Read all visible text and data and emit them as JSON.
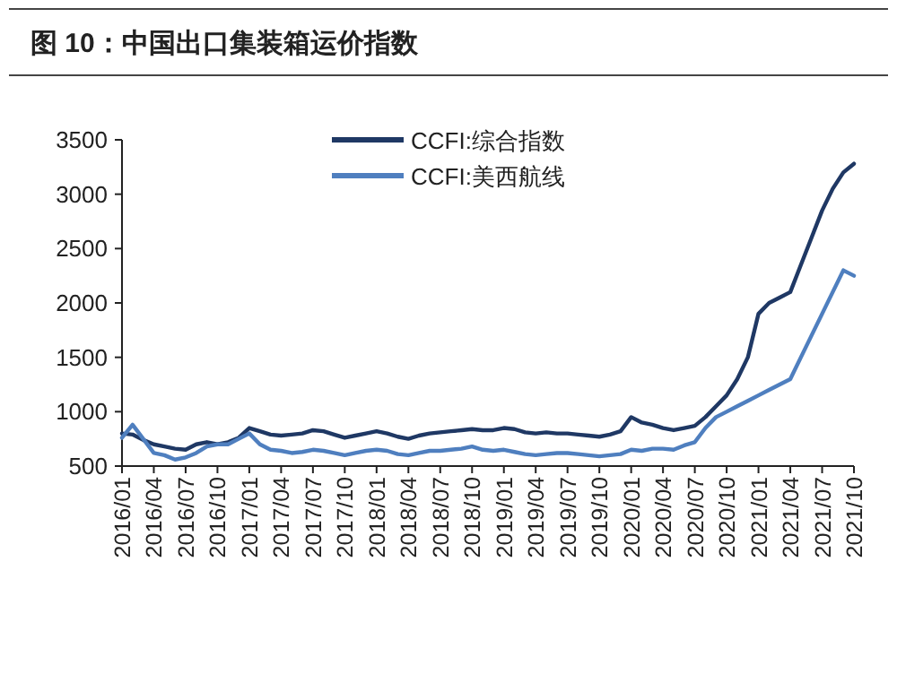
{
  "chart_data": {
    "type": "line",
    "title": "图 10：中国出口集装箱运价指数",
    "x": [
      "2016-01",
      "2016-02",
      "2016-03",
      "2016-04",
      "2016-05",
      "2016-06",
      "2016-07",
      "2016-08",
      "2016-09",
      "2016-10",
      "2016-11",
      "2016-12",
      "2017-01",
      "2017-02",
      "2017-03",
      "2017-04",
      "2017-05",
      "2017-06",
      "2017-07",
      "2017-08",
      "2017-09",
      "2017-10",
      "2017-11",
      "2017-12",
      "2018-01",
      "2018-02",
      "2018-03",
      "2018-04",
      "2018-05",
      "2018-06",
      "2018-07",
      "2018-08",
      "2018-09",
      "2018-10",
      "2018-11",
      "2018-12",
      "2019-01",
      "2019-02",
      "2019-03",
      "2019-04",
      "2019-05",
      "2019-06",
      "2019-07",
      "2019-08",
      "2019-09",
      "2019-10",
      "2019-11",
      "2019-12",
      "2020-01",
      "2020-02",
      "2020-03",
      "2020-04",
      "2020-05",
      "2020-06",
      "2020-07",
      "2020-08",
      "2020-09",
      "2020-10",
      "2020-11",
      "2020-12",
      "2021-01",
      "2021-02",
      "2021-03",
      "2021-04",
      "2021-05",
      "2021-06",
      "2021-07",
      "2021-08",
      "2021-09",
      "2021-10"
    ],
    "series": [
      {
        "name": "CCFI:综合指数",
        "color": "#1f3864",
        "values": [
          800,
          790,
          740,
          700,
          680,
          660,
          650,
          700,
          720,
          700,
          720,
          760,
          850,
          820,
          790,
          780,
          790,
          800,
          830,
          820,
          790,
          760,
          780,
          800,
          820,
          800,
          770,
          750,
          780,
          800,
          810,
          820,
          830,
          840,
          830,
          830,
          850,
          840,
          810,
          800,
          810,
          800,
          800,
          790,
          780,
          770,
          790,
          820,
          950,
          900,
          880,
          850,
          830,
          850,
          870,
          950,
          1050,
          1150,
          1300,
          1500,
          1900,
          2000,
          2050,
          2100,
          2350,
          2600,
          2850,
          3050,
          3200,
          3280
        ]
      },
      {
        "name": "CCFI:美西航线",
        "color": "#4f7fbf",
        "values": [
          760,
          880,
          750,
          620,
          600,
          560,
          580,
          620,
          680,
          700,
          700,
          750,
          800,
          700,
          650,
          640,
          620,
          630,
          650,
          640,
          620,
          600,
          620,
          640,
          650,
          640,
          610,
          600,
          620,
          640,
          640,
          650,
          660,
          680,
          650,
          640,
          650,
          630,
          610,
          600,
          610,
          620,
          620,
          610,
          600,
          590,
          600,
          610,
          650,
          640,
          660,
          660,
          650,
          690,
          720,
          850,
          950,
          1000,
          1050,
          1100,
          1150,
          1200,
          1250,
          1300,
          1500,
          1700,
          1900,
          2100,
          2300,
          2250
        ]
      }
    ],
    "xlim": [
      "2016-01",
      "2021-10"
    ],
    "xticks": [
      {
        "value": "2016-01",
        "label": "2016/01"
      },
      {
        "value": "2016-04",
        "label": "2016/04"
      },
      {
        "value": "2016-07",
        "label": "2016/07"
      },
      {
        "value": "2016-10",
        "label": "2016/10"
      },
      {
        "value": "2017-01",
        "label": "2017/01"
      },
      {
        "value": "2017-04",
        "label": "2017/04"
      },
      {
        "value": "2017-07",
        "label": "2017/07"
      },
      {
        "value": "2017-10",
        "label": "2017/10"
      },
      {
        "value": "2018-01",
        "label": "2018/01"
      },
      {
        "value": "2018-04",
        "label": "2018/04"
      },
      {
        "value": "2018-07",
        "label": "2018/07"
      },
      {
        "value": "2018-10",
        "label": "2018/10"
      },
      {
        "value": "2019-01",
        "label": "2019/01"
      },
      {
        "value": "2019-04",
        "label": "2019/04"
      },
      {
        "value": "2019-07",
        "label": "2019/07"
      },
      {
        "value": "2019-10",
        "label": "2019/10"
      },
      {
        "value": "2020-01",
        "label": "2020/01"
      },
      {
        "value": "2020-04",
        "label": "2020/04"
      },
      {
        "value": "2020-07",
        "label": "2020/07"
      },
      {
        "value": "2020-10",
        "label": "2020/10"
      },
      {
        "value": "2021-01",
        "label": "2021/01"
      },
      {
        "value": "2021-04",
        "label": "2021/04"
      },
      {
        "value": "2021-07",
        "label": "2021/07"
      },
      {
        "value": "2021-10",
        "label": "2021/10"
      }
    ],
    "ylim": [
      500,
      3500
    ],
    "yticks": [
      500,
      1000,
      1500,
      2000,
      2500,
      3000,
      3500
    ],
    "legend": "top",
    "grid": false,
    "marker": "none",
    "line_style": "solid"
  }
}
